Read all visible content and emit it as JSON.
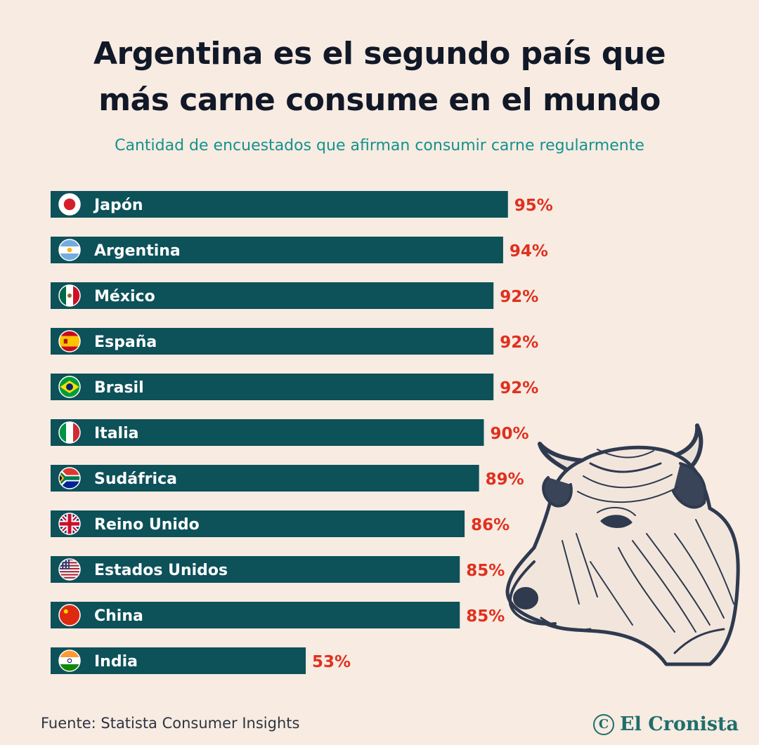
{
  "header": {
    "title_line1": "Argentina es el segundo país que",
    "title_line2": "más carne consume en el mundo",
    "subtitle": "Cantidad de encuestados que afirman consumir carne regularmente"
  },
  "chart_data": {
    "type": "bar",
    "orientation": "horizontal",
    "categories": [
      "Japón",
      "Argentina",
      "México",
      "España",
      "Brasil",
      "Italia",
      "Sudáfrica",
      "Reino Unido",
      "Estados Unidos",
      "China",
      "India"
    ],
    "values": [
      95,
      94,
      92,
      92,
      92,
      90,
      89,
      86,
      85,
      85,
      53
    ],
    "value_labels": [
      "95%",
      "94%",
      "92%",
      "92%",
      "92%",
      "90%",
      "89%",
      "86%",
      "85%",
      "85%",
      "53%"
    ],
    "flags": [
      "japan-flag-icon",
      "argentina-flag-icon",
      "mexico-flag-icon",
      "spain-flag-icon",
      "brazil-flag-icon",
      "italy-flag-icon",
      "south-africa-flag-icon",
      "uk-flag-icon",
      "usa-flag-icon",
      "china-flag-icon",
      "india-flag-icon"
    ],
    "unit": "%",
    "xlim": [
      0,
      100
    ],
    "grid": false,
    "colors": {
      "bar": "#0d5159",
      "value_label": "#e0301e",
      "category_label": "#ffffff"
    }
  },
  "footer": {
    "source": "Fuente: Statista Consumer Insights",
    "brand": "El Cronista",
    "brand_mark": "C"
  },
  "decoration": {
    "illustration": "cow-head-illustration"
  }
}
